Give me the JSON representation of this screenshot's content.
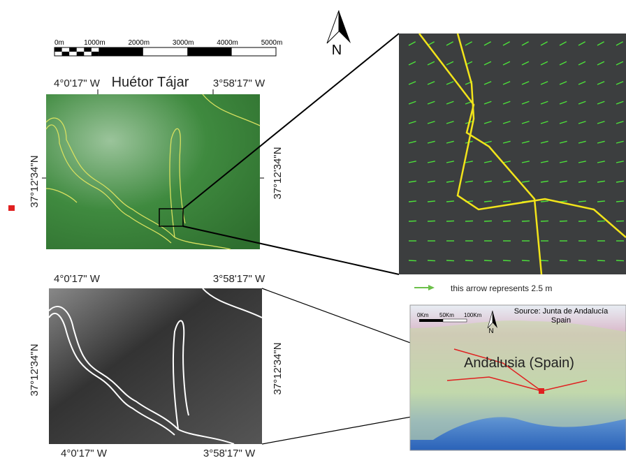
{
  "scale_bar": {
    "labels": [
      "0m",
      "1000m",
      "2000m",
      "3000m",
      "4000m",
      "5000m"
    ]
  },
  "north_arrow": "N",
  "top_map": {
    "title": "Huétor Tájar",
    "top_left": "4°0'17\" W",
    "top_right": "3°58'17\" W",
    "left": "37°12'34\"N",
    "right": "37°12'34\"N"
  },
  "bottom_map": {
    "top_left": "4°0'17\" W",
    "top_right": "3°58'17\" W",
    "bottom_left": "4°0'17\" W",
    "bottom_right": "3°58'17\" W",
    "left": "37°12'34\"N",
    "right": "37°12'34\"N"
  },
  "legend": "this arrow represents 2.5 m",
  "inset": {
    "scale_labels": [
      "0Km",
      "50Km",
      "100Km"
    ],
    "source": [
      "Source: Junta de Andalucía",
      "Spain"
    ],
    "north": "N",
    "title": "Andalusia (Spain)"
  }
}
